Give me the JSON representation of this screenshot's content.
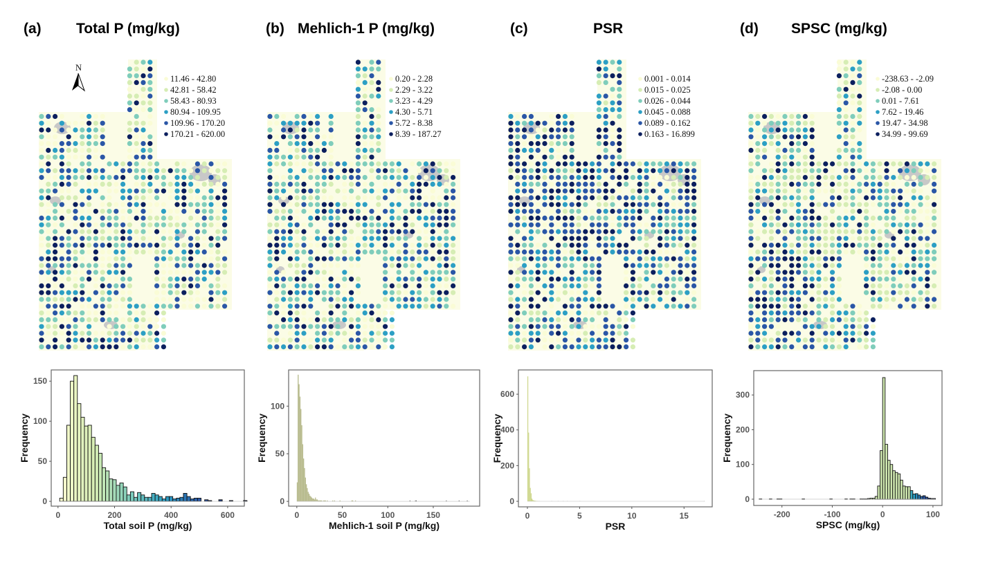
{
  "panels": [
    {
      "label": "(a)",
      "title": "Total P (mg/kg)",
      "legend": [
        "11.46 - 42.80",
        "42.81 - 58.42",
        "58.43 - 80.93",
        "80.94 - 109.95",
        "109.96 - 170.20",
        "170.21 - 620.00"
      ]
    },
    {
      "label": "(b)",
      "title": "Mehlich-1 P (mg/kg)",
      "legend": [
        "0.20 - 2.28",
        "2.29 - 3.22",
        "3.23 - 4.29",
        "4.30 - 5.71",
        "5.72 - 8.38",
        "8.39 - 187.27"
      ]
    },
    {
      "label": "(c)",
      "title": "PSR",
      "legend": [
        "0.001 - 0.014",
        "0.015 - 0.025",
        "0.026 - 0.044",
        "0.045 - 0.088",
        "0.089 - 0.162",
        "0.163 - 16.899"
      ]
    },
    {
      "label": "(d)",
      "title": "SPSC (mg/kg)",
      "legend": [
        "-238.63 - -2.09",
        "-2.08 - 0.00",
        "0.01 - 7.61",
        "7.62 - 19.46",
        "19.47 - 34.98",
        "34.99 - 99.69"
      ]
    }
  ],
  "north_arrow_label": "N",
  "class_colors": [
    "#fafcd6",
    "#d6edb4",
    "#7fcdbb",
    "#2c9fc4",
    "#2a56a6",
    "#0c1f5e"
  ],
  "map_background_color": "#fbfce6",
  "water_color": "#c8c8c8",
  "chart_data": [
    {
      "type": "bar",
      "subtype": "histogram",
      "xlabel": "Total soil P (mg/kg)",
      "ylabel": "Frequency",
      "xlim": [
        -24,
        659
      ],
      "ylim": [
        -6,
        164
      ],
      "xticks": [
        0,
        200,
        400,
        600
      ],
      "yticks": [
        0,
        50,
        100,
        150
      ],
      "bin_width": 12.5,
      "first_bin_start": 6,
      "values": [
        4,
        30,
        95,
        150,
        157,
        122,
        105,
        94,
        95,
        80,
        70,
        60,
        42,
        38,
        28,
        27,
        20,
        23,
        18,
        8,
        12,
        5,
        11,
        8,
        5,
        5,
        10,
        8,
        6,
        3,
        6,
        6,
        3,
        4,
        5,
        10,
        6,
        3,
        4,
        4,
        0,
        2,
        1,
        0,
        0,
        2,
        0,
        0,
        1,
        0,
        0,
        0,
        1
      ],
      "fill": "gradient"
    },
    {
      "type": "bar",
      "subtype": "histogram",
      "xlabel": "Mehlich-1 soil P (mg/kg)",
      "ylabel": "Frequency",
      "xlim": [
        -9,
        201
      ],
      "ylim": [
        -5,
        138
      ],
      "xticks": [
        0,
        50,
        100,
        150
      ],
      "yticks": [
        0,
        50,
        100
      ],
      "bin_width": 1,
      "first_bin_start": 0,
      "values": [
        20,
        133,
        123,
        110,
        97,
        80,
        60,
        45,
        35,
        25,
        18,
        14,
        10,
        8,
        6,
        5,
        4,
        3,
        3,
        2,
        4,
        2,
        2,
        1,
        1,
        1,
        1,
        1,
        0,
        1,
        1,
        1,
        0,
        1,
        0,
        0,
        0,
        0,
        0,
        1,
        0,
        1,
        0,
        0,
        0,
        0,
        0,
        1,
        0,
        0,
        0,
        0,
        0,
        0,
        0,
        0,
        0,
        0,
        0,
        0,
        1,
        1,
        0,
        0,
        1
      ],
      "outliers": [
        124,
        130,
        131,
        164,
        178,
        187
      ],
      "fill": "#b7ba8c"
    },
    {
      "type": "bar",
      "subtype": "histogram",
      "xlabel": "PSR",
      "ylabel": "Frequency",
      "xlim": [
        -0.86,
        17.7
      ],
      "ylim": [
        -31,
        736
      ],
      "xticks": [
        0,
        5,
        10,
        15
      ],
      "yticks": [
        0,
        200,
        400,
        600
      ],
      "bin_width": 0.08,
      "first_bin_start": 0,
      "values": [
        700,
        385,
        185,
        75,
        45,
        15,
        8,
        5,
        4,
        3,
        2,
        2,
        1,
        1,
        1
      ],
      "outliers": [
        2.3,
        2.9,
        3.4,
        3.8,
        5.0,
        16.9
      ],
      "fill": "#cdd68a"
    },
    {
      "type": "bar",
      "subtype": "histogram",
      "xlabel": "SPSC (mg/kg)",
      "ylabel": "Frequency",
      "xlim": [
        -256,
        118
      ],
      "ylim": [
        -18,
        370
      ],
      "xticks": [
        -200,
        -100,
        0,
        100
      ],
      "yticks": [
        0,
        100,
        200,
        300
      ],
      "bin_width": 5,
      "first_bin_start": -245,
      "values": [
        1,
        0,
        0,
        0,
        1,
        0,
        0,
        1,
        1,
        0,
        0,
        0,
        0,
        0,
        0,
        0,
        0,
        1,
        0,
        0,
        0,
        0,
        0,
        0,
        0,
        0,
        0,
        0,
        1,
        0,
        0,
        0,
        0,
        0,
        1,
        0,
        1,
        1,
        0,
        0,
        1,
        1,
        1,
        2,
        3,
        3,
        8,
        38,
        140,
        350,
        158,
        112,
        100,
        82,
        77,
        73,
        55,
        38,
        36,
        36,
        25,
        15,
        16,
        12,
        8,
        10,
        6,
        3,
        2,
        2
      ],
      "fill": "gradient"
    }
  ]
}
